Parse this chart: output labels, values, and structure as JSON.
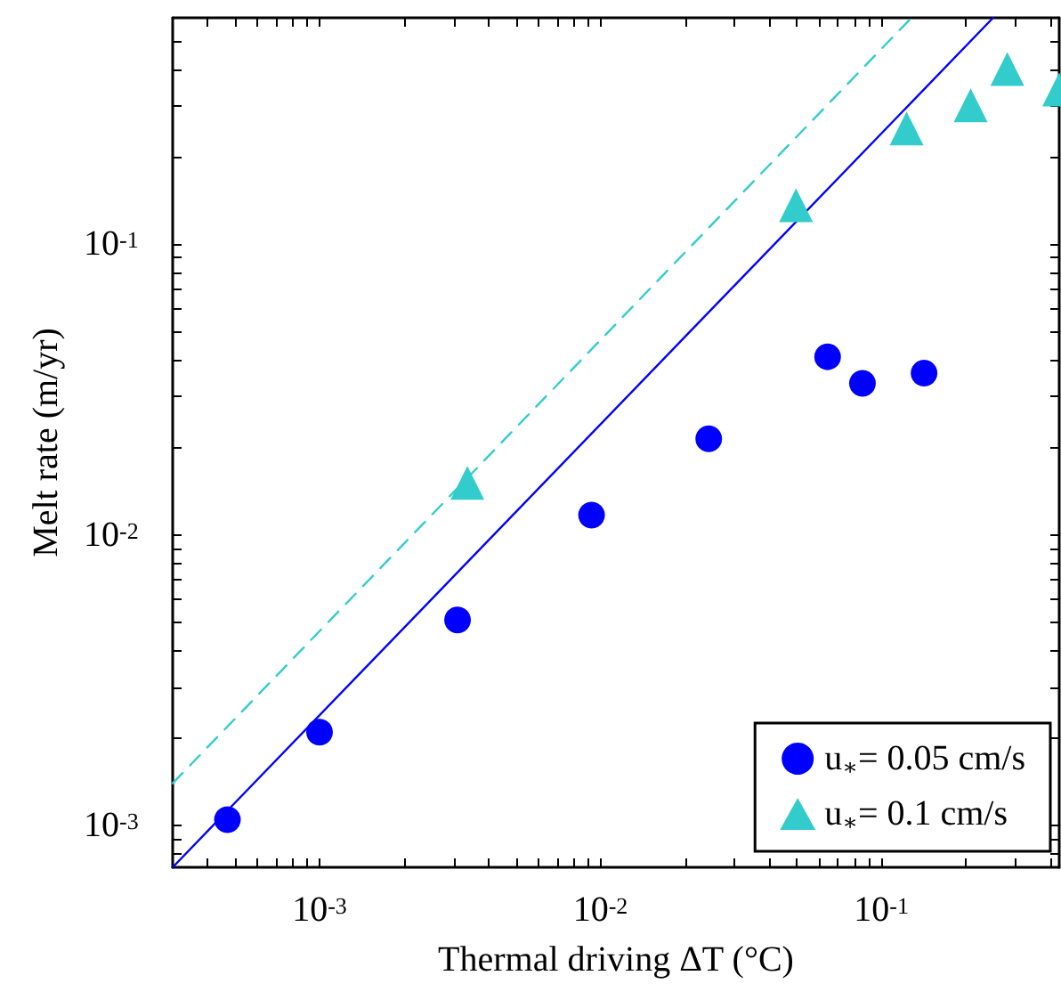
{
  "chart_data": {
    "type": "scatter",
    "xlabel": "Thermal driving ΔT (°C)",
    "ylabel": "Melt rate (m/yr)",
    "log": "xy",
    "grid": false,
    "legend": "bottom right",
    "xlim": [
      0.0003,
      0.43
    ],
    "ylim": [
      0.00072,
      0.6
    ],
    "xticks": [
      {
        "value": 0.0004,
        "label": null
      },
      {
        "value": 0.0005,
        "label": null
      },
      {
        "value": 0.0006,
        "label": null
      },
      {
        "value": 0.0007,
        "label": null
      },
      {
        "value": 0.0008,
        "label": null
      },
      {
        "value": 0.0009,
        "label": null
      },
      {
        "value": 0.001,
        "label": "10$^{-3}$"
      },
      {
        "value": 0.002,
        "label": null
      },
      {
        "value": 0.003,
        "label": null
      },
      {
        "value": 0.004,
        "label": null
      },
      {
        "value": 0.005,
        "label": null
      },
      {
        "value": 0.006,
        "label": null
      },
      {
        "value": 0.007,
        "label": null
      },
      {
        "value": 0.008,
        "label": null
      },
      {
        "value": 0.009,
        "label": null
      },
      {
        "value": 0.01,
        "label": "10$^{-2}$"
      },
      {
        "value": 0.02,
        "label": null
      },
      {
        "value": 0.03,
        "label": null
      },
      {
        "value": 0.04,
        "label": null
      },
      {
        "value": 0.05,
        "label": null
      },
      {
        "value": 0.06,
        "label": null
      },
      {
        "value": 0.07,
        "label": null
      },
      {
        "value": 0.08,
        "label": null
      },
      {
        "value": 0.09,
        "label": null
      },
      {
        "value": 0.1,
        "label": "10$^{-1}$"
      },
      {
        "value": 0.2,
        "label": null
      },
      {
        "value": 0.3,
        "label": null
      },
      {
        "value": 0.4,
        "label": null
      }
    ],
    "yticks": [
      {
        "value": 0.0008,
        "label": null
      },
      {
        "value": 0.0009,
        "label": null
      },
      {
        "value": 0.001,
        "label": "10$^{-3}$"
      },
      {
        "value": 0.002,
        "label": null
      },
      {
        "value": 0.003,
        "label": null
      },
      {
        "value": 0.004,
        "label": null
      },
      {
        "value": 0.005,
        "label": null
      },
      {
        "value": 0.006,
        "label": null
      },
      {
        "value": 0.007,
        "label": null
      },
      {
        "value": 0.008,
        "label": null
      },
      {
        "value": 0.009,
        "label": null
      },
      {
        "value": 0.01,
        "label": "10$^{-2}$"
      },
      {
        "value": 0.02,
        "label": null
      },
      {
        "value": 0.03,
        "label": null
      },
      {
        "value": 0.04,
        "label": null
      },
      {
        "value": 0.05,
        "label": null
      },
      {
        "value": 0.06,
        "label": null
      },
      {
        "value": 0.07,
        "label": null
      },
      {
        "value": 0.08,
        "label": null
      },
      {
        "value": 0.09,
        "label": null
      },
      {
        "value": 0.1,
        "label": "10$^{-1}$"
      },
      {
        "value": 0.2,
        "label": null
      },
      {
        "value": 0.3,
        "label": null
      },
      {
        "value": 0.4,
        "label": null
      },
      {
        "value": 0.5,
        "label": null
      }
    ],
    "series": [
      {
        "type": "line",
        "color": "#0000ff",
        "line_style": "solid",
        "marker": "none",
        "x": [
          0.0003,
          0.25
        ],
        "values": [
          0.00072,
          0.6
        ]
      },
      {
        "type": "line",
        "color": "#33cccc",
        "line_style": "dashed",
        "marker": "none",
        "x": [
          0.0003,
          0.128
        ],
        "values": [
          0.0014,
          0.6
        ]
      },
      {
        "name": "u$_{∗}$= 0.05 cm/s",
        "color": "#0000ff",
        "marker": "circle",
        "x": [
          0.00047,
          0.001,
          0.0031,
          0.0093,
          0.0243,
          0.0644,
          0.0857,
          0.142
        ],
        "values": [
          0.00105,
          0.0021,
          0.0051,
          0.0117,
          0.0214,
          0.041,
          0.0332,
          0.036
        ]
      },
      {
        "name": "u$_{∗}$= 0.1 cm/s",
        "color": "#33cccc",
        "marker": "triangle",
        "x": [
          0.00336,
          0.0497,
          0.123,
          0.208,
          0.281,
          0.43
        ],
        "values": [
          0.0151,
          0.136,
          0.25,
          0.3,
          0.4,
          0.34
        ]
      }
    ]
  }
}
